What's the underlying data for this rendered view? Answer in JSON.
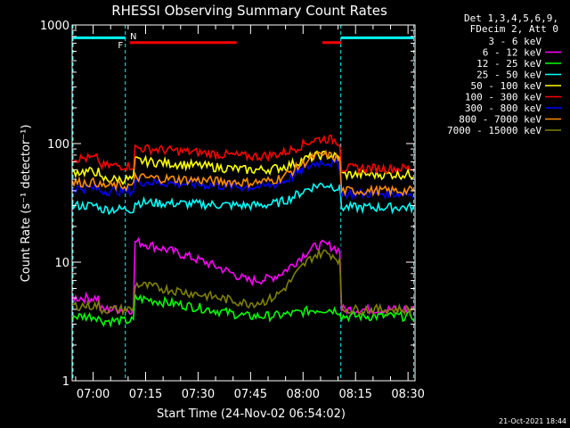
{
  "chart_data": {
    "type": "line",
    "title": "RHESSI Observing Summary Count Rates",
    "xlabel": "Start Time (24-Nov-02 06:54:02)",
    "ylabel": "Count Rate (s⁻¹ detector⁻¹)",
    "y_scale": "log",
    "ylim": [
      1,
      1000
    ],
    "xlim_minutes_since_0654": [
      0,
      98
    ],
    "x_tick_labels": [
      "07:00",
      "07:15",
      "07:30",
      "07:45",
      "08:00",
      "08:15",
      "08:30"
    ],
    "x_tick_minutes": [
      6,
      21,
      36,
      51,
      66,
      81,
      96
    ],
    "y_tick_labels": [
      "1",
      "10",
      "100",
      "1000"
    ],
    "y_tick_values": [
      1,
      10,
      100,
      1000
    ],
    "legend_header": [
      "Det 1,3,4,5,6,9,",
      "FDecim 2, Att 0"
    ],
    "series": [
      {
        "name": "3 - 6 keV",
        "color": "#000000"
      },
      {
        "name": "6 - 12 keV",
        "color": "#ff00ff"
      },
      {
        "name": "12 - 25 keV",
        "color": "#00ff00"
      },
      {
        "name": "25 - 50 keV",
        "color": "#00ffff"
      },
      {
        "name": "50 - 100 keV",
        "color": "#ffff00"
      },
      {
        "name": "100 - 300 keV",
        "color": "#ff0000"
      },
      {
        "name": "300 - 800 keV",
        "color": "#0000ff"
      },
      {
        "name": "800 - 7000 keV",
        "color": "#ff8c00"
      },
      {
        "name": "7000 - 15000 keV",
        "color": "#808000"
      }
    ],
    "annotations": {
      "flag_F": "F",
      "flag_N": "N"
    },
    "footer_timestamp": "21-Oct-2021 18:44"
  }
}
